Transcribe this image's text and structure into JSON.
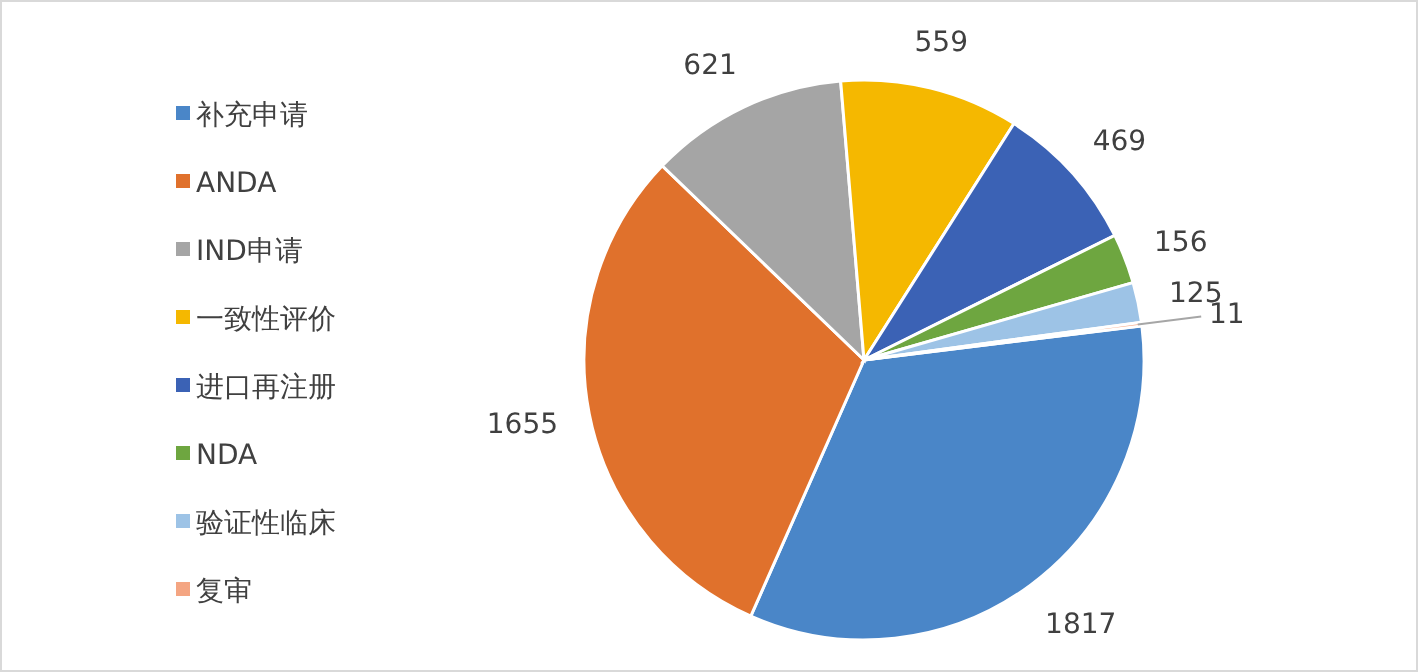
{
  "chart_data": {
    "type": "pie",
    "categories": [
      "补充申请",
      "ANDA",
      "IND申请",
      "一致性评价",
      "进口再注册",
      "NDA",
      "验证性临床",
      "复审"
    ],
    "values": [
      1817,
      1655,
      621,
      559,
      469,
      156,
      125,
      11
    ],
    "colors": [
      "#4a86c8",
      "#e0712c",
      "#a5a5a5",
      "#f5b800",
      "#3b62b5",
      "#6ea640",
      "#9dc3e6",
      "#f4a582"
    ],
    "data_labels": true,
    "legend": "left"
  }
}
